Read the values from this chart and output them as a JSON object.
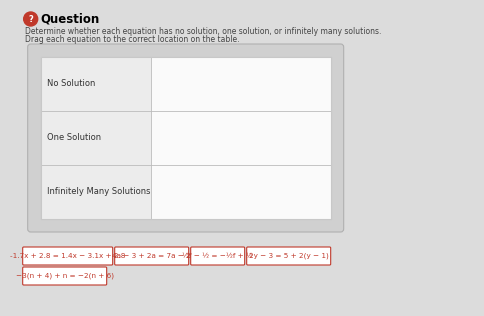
{
  "title": "Question",
  "instructions_line1": "Determine whether each equation has no solution, one solution, or infinitely many solutions.",
  "instructions_line2": "Drag each equation to the correct location on the table.",
  "table_rows": [
    "No Solution",
    "One Solution",
    "Infinitely Many Solutions"
  ],
  "bg_color": "#dcdcdc",
  "outer_box_color": "#d0d0d0",
  "outer_box_edge": "#b0b0b0",
  "inner_box_color": "#f8f8f8",
  "inner_box_edge": "#c8c8c8",
  "label_cell_color": "#ececec",
  "right_cell_color": "#fafafa",
  "equation_boxes": [
    "-1.7x + 2.8 = 1.4x − 3.1x + 2.8",
    "4a − 3 + 2a = 7a − 2",
    "½f − ½ = −½f + ½",
    "2y − 3 = 5 + 2(y − 1)",
    "−3(n + 4) + n = −2(n + 6)"
  ],
  "eq_box_fill": "#ffffff",
  "eq_box_border": "#c0392b",
  "eq_text_color": "#c0392b",
  "title_color": "#000000",
  "icon_bg": "#c0392b",
  "icon_text": "#ffffff",
  "instr_color": "#444444",
  "row_label_color": "#333333",
  "row_sep_color": "#bbbbbb",
  "col_sep_color": "#bbbbbb"
}
